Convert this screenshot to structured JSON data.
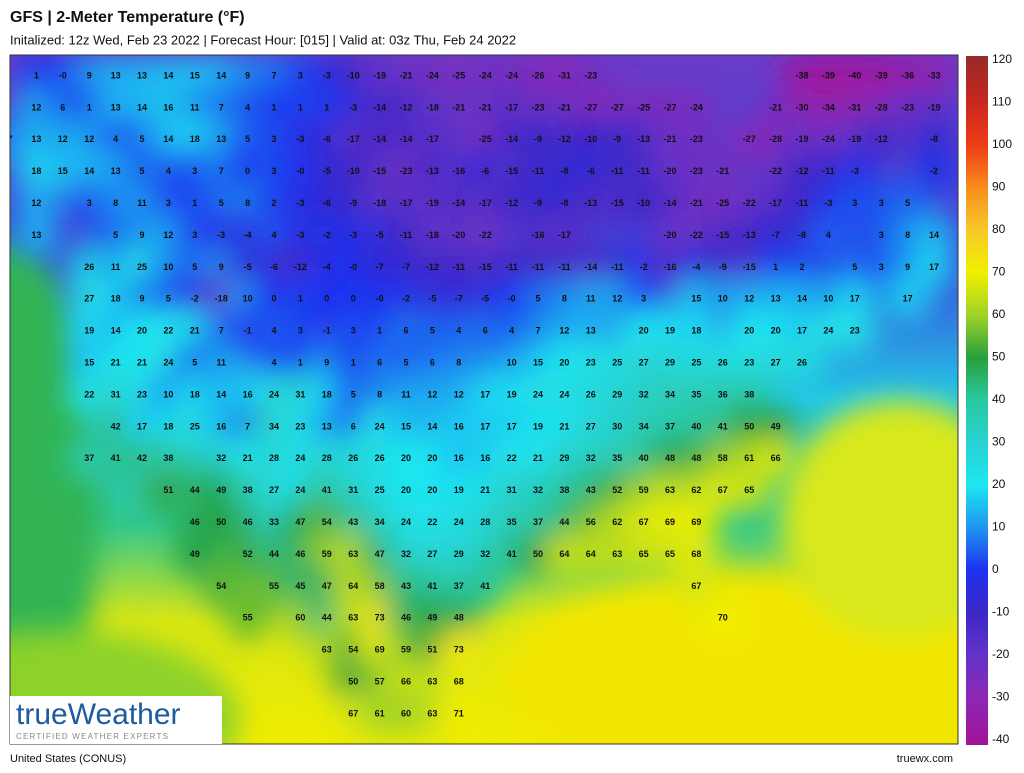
{
  "header": {
    "title": "GFS | 2-Meter Temperature (°F)",
    "subtitle": "Initalized: 12z Wed, Feb 23 2022  |  Forecast Hour: [015]  |  Valid at: 03z Thu, Feb 24 2022"
  },
  "map": {
    "rows": [
      [
        null,
        1,
        "-0",
        9,
        13,
        13,
        14,
        15,
        14,
        9,
        7,
        3,
        -3,
        -10,
        -19,
        -21,
        -24,
        -25,
        -24,
        -24,
        -26,
        -31,
        -23,
        null,
        null,
        null,
        null,
        null,
        null,
        null,
        -38,
        -39,
        -40,
        -39,
        -36,
        -33
      ],
      [
        null,
        12,
        6,
        1,
        13,
        14,
        16,
        11,
        7,
        4,
        1,
        1,
        1,
        -3,
        -14,
        -12,
        -18,
        -21,
        -21,
        -17,
        -23,
        -21,
        -27,
        -27,
        -25,
        -27,
        -24,
        null,
        null,
        -21,
        -30,
        -34,
        -31,
        -28,
        -23,
        -19
      ],
      [
        7,
        13,
        12,
        12,
        4,
        5,
        14,
        18,
        13,
        5,
        3,
        -3,
        -6,
        -17,
        -14,
        -14,
        -17,
        null,
        -25,
        -14,
        -9,
        -12,
        -10,
        -9,
        -13,
        -21,
        -23,
        null,
        -27,
        -28,
        -19,
        -24,
        -19,
        -12,
        null,
        -8
      ],
      [
        null,
        18,
        15,
        14,
        13,
        5,
        4,
        3,
        7,
        0,
        3,
        "-0",
        -5,
        -10,
        -15,
        -23,
        -13,
        -16,
        -6,
        -15,
        -11,
        -8,
        -6,
        -11,
        -11,
        -20,
        -23,
        -21,
        null,
        -22,
        -12,
        -11,
        -3,
        null,
        null,
        -2
      ],
      [
        null,
        12,
        null,
        3,
        8,
        11,
        3,
        1,
        5,
        8,
        2,
        -3,
        -6,
        -9,
        -18,
        -17,
        -19,
        -14,
        -17,
        -12,
        -9,
        -8,
        -13,
        -15,
        -10,
        -14,
        -21,
        -25,
        -22,
        -17,
        -11,
        -3,
        3,
        3,
        5
      ],
      [
        null,
        13,
        null,
        null,
        5,
        9,
        12,
        3,
        -3,
        -4,
        4,
        -3,
        -2,
        -3,
        -5,
        -11,
        -18,
        -20,
        -22,
        null,
        -16,
        -17,
        null,
        null,
        null,
        -20,
        -22,
        -15,
        -13,
        -7,
        -8,
        4,
        null,
        3,
        8,
        14
      ],
      [
        null,
        null,
        null,
        26,
        11,
        25,
        10,
        5,
        9,
        -5,
        -6,
        -12,
        -4,
        "-0",
        -7,
        -7,
        -12,
        -11,
        -15,
        -11,
        -11,
        -11,
        -14,
        -11,
        -2,
        -16,
        -4,
        -9,
        -15,
        1,
        2,
        null,
        5,
        3,
        9,
        17
      ],
      [
        null,
        null,
        null,
        27,
        18,
        9,
        5,
        -2,
        -18,
        10,
        0,
        1,
        0,
        0,
        "-0",
        -2,
        -5,
        -7,
        -5,
        "-0",
        5,
        8,
        11,
        12,
        3,
        null,
        15,
        10,
        12,
        13,
        14,
        10,
        17,
        null,
        17
      ],
      [
        null,
        null,
        null,
        19,
        14,
        20,
        22,
        21,
        7,
        -1,
        4,
        3,
        -1,
        3,
        1,
        6,
        5,
        4,
        6,
        4,
        7,
        12,
        13,
        null,
        20,
        19,
        18,
        null,
        20,
        20,
        17,
        24,
        23
      ],
      [
        null,
        null,
        null,
        15,
        21,
        21,
        24,
        5,
        11,
        null,
        4,
        1,
        9,
        1,
        6,
        5,
        6,
        8,
        null,
        10,
        15,
        20,
        23,
        25,
        27,
        29,
        25,
        26,
        23,
        27,
        26
      ],
      [
        null,
        null,
        null,
        22,
        31,
        23,
        10,
        18,
        14,
        16,
        24,
        31,
        18,
        5,
        8,
        11,
        12,
        12,
        17,
        19,
        24,
        24,
        26,
        29,
        32,
        34,
        35,
        36,
        38
      ],
      [
        null,
        null,
        null,
        null,
        42,
        17,
        18,
        25,
        16,
        7,
        34,
        23,
        13,
        6,
        24,
        15,
        14,
        16,
        17,
        17,
        19,
        21,
        27,
        30,
        34,
        37,
        40,
        41,
        50,
        49
      ],
      [
        null,
        null,
        null,
        37,
        41,
        42,
        38,
        null,
        32,
        21,
        28,
        24,
        28,
        26,
        26,
        20,
        20,
        16,
        16,
        22,
        21,
        29,
        32,
        35,
        40,
        48,
        48,
        58,
        61,
        66
      ],
      [
        null,
        null,
        null,
        null,
        null,
        null,
        51,
        44,
        49,
        38,
        27,
        24,
        41,
        31,
        25,
        20,
        20,
        19,
        21,
        31,
        32,
        38,
        43,
        52,
        59,
        63,
        62,
        67,
        65
      ],
      [
        null,
        null,
        null,
        null,
        null,
        null,
        null,
        46,
        50,
        46,
        33,
        47,
        54,
        43,
        34,
        24,
        22,
        24,
        28,
        35,
        37,
        44,
        56,
        62,
        67,
        69,
        69
      ],
      [
        null,
        null,
        null,
        null,
        null,
        null,
        null,
        49,
        null,
        52,
        44,
        46,
        59,
        63,
        47,
        32,
        27,
        29,
        32,
        41,
        50,
        64,
        64,
        63,
        65,
        65,
        68
      ],
      [
        null,
        null,
        null,
        null,
        null,
        null,
        null,
        null,
        54,
        null,
        55,
        45,
        47,
        64,
        58,
        43,
        41,
        37,
        41,
        null,
        null,
        null,
        null,
        null,
        null,
        null,
        67
      ],
      [
        null,
        null,
        null,
        null,
        null,
        null,
        null,
        null,
        null,
        55,
        null,
        60,
        44,
        63,
        73,
        46,
        49,
        48,
        null,
        null,
        null,
        null,
        null,
        null,
        null,
        null,
        null,
        70
      ],
      [
        null,
        null,
        null,
        null,
        null,
        null,
        null,
        null,
        null,
        null,
        null,
        null,
        63,
        54,
        69,
        59,
        51,
        73
      ],
      [
        null,
        null,
        null,
        null,
        null,
        null,
        null,
        null,
        null,
        null,
        null,
        null,
        null,
        50,
        57,
        66,
        63,
        68
      ],
      [
        null,
        null,
        null,
        null,
        null,
        null,
        null,
        null,
        null,
        null,
        null,
        null,
        null,
        67,
        61,
        60,
        63,
        71
      ]
    ]
  },
  "colorbar": {
    "ticks": [
      120,
      110,
      100,
      90,
      80,
      70,
      60,
      50,
      40,
      30,
      20,
      10,
      0,
      -10,
      -20,
      -30,
      -40
    ],
    "colors": [
      "#9a2a2a",
      "#c8281e",
      "#ee3c14",
      "#f88c1e",
      "#f8c828",
      "#f0f000",
      "#a0d228",
      "#28a03c",
      "#2ac8a0",
      "#28d2d2",
      "#1ee6f0",
      "#1e96f0",
      "#1e32f0",
      "#3c28c8",
      "#6432c8",
      "#8c28b4",
      "#a0149b"
    ]
  },
  "logo": {
    "name": "trueWeather",
    "tagline": "CERTIFIED WEATHER EXPERTS"
  },
  "footer": {
    "region": "United States (CONUS)",
    "site": "truewx.com"
  }
}
